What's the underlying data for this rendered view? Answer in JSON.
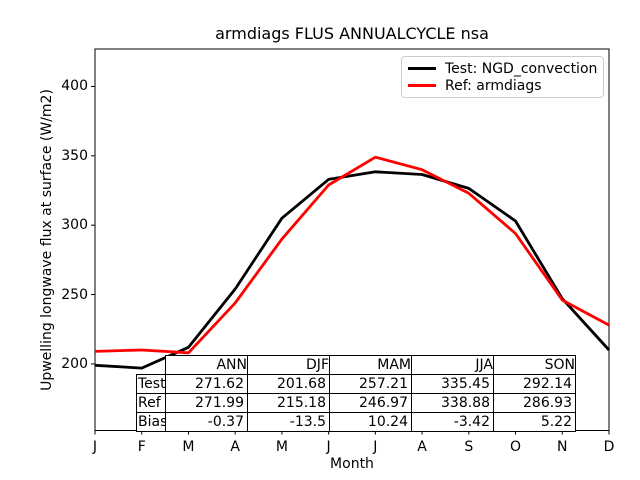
{
  "title": "armdiags FLUS ANNUALCYCLE nsa",
  "chart_data": {
    "type": "line",
    "title": "armdiags FLUS ANNUALCYCLE nsa",
    "xlabel": "Month",
    "ylabel": "Upwelling longwave flux at surface (W/m2)",
    "x_tick_labels": [
      "J",
      "F",
      "M",
      "A",
      "M",
      "J",
      "J",
      "A",
      "S",
      "O",
      "N",
      "D"
    ],
    "y_ticks": [
      200,
      250,
      300,
      350,
      400
    ],
    "xlim": [
      0,
      11
    ],
    "ylim": [
      152,
      427
    ],
    "grid": false,
    "legend_position": "upper right",
    "series": [
      {
        "name": "Test: NGD_convection",
        "color": "#000000",
        "values": [
          199,
          197,
          212,
          254,
          305,
          333,
          338.5,
          336.5,
          326.5,
          303,
          247,
          210
        ]
      },
      {
        "name": "Ref: armdiags",
        "color": "#ff0000",
        "values": [
          209,
          210,
          208,
          244,
          290,
          329,
          349,
          340,
          323,
          294,
          246,
          228
        ]
      }
    ]
  },
  "table": {
    "columns": [
      "ANN",
      "DJF",
      "MAM",
      "JJA",
      "SON"
    ],
    "rows": [
      {
        "label": "Test",
        "values": [
          "271.62",
          "201.68",
          "257.21",
          "335.45",
          "292.14"
        ]
      },
      {
        "label": "Ref",
        "values": [
          "271.99",
          "215.18",
          "246.97",
          "338.88",
          "286.93"
        ]
      },
      {
        "label": "Bias",
        "values": [
          "-0.37",
          "-13.5",
          "10.24",
          "-3.42",
          "5.22"
        ]
      }
    ]
  }
}
